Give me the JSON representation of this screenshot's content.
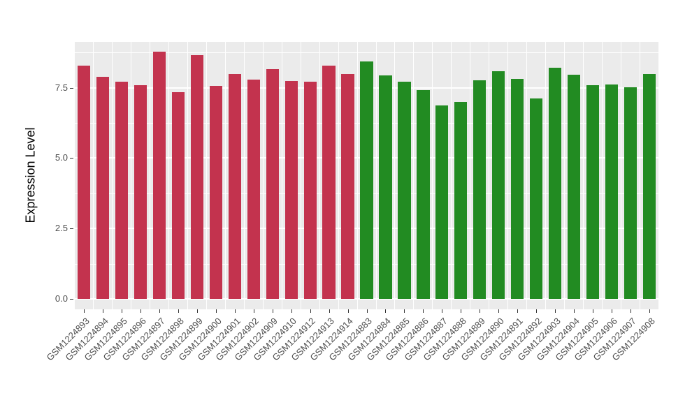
{
  "chart_data": {
    "type": "bar",
    "title": "",
    "xlabel": "",
    "ylabel": "Expression Level",
    "panel_bg": "#EBEBEB",
    "grid_color": "#FFFFFF",
    "axis_text_color": "#4D4D4D",
    "ylim": [
      0,
      9.5
    ],
    "grid": true,
    "legend": "none",
    "y_ticks": [
      {
        "value": 0.0,
        "label": "0.0"
      },
      {
        "value": 2.5,
        "label": "2.5"
      },
      {
        "value": 5.0,
        "label": "5.0"
      },
      {
        "value": 7.5,
        "label": "7.5"
      }
    ],
    "y_minor_ticks": [
      1.25,
      3.75,
      6.25,
      8.75
    ],
    "groups": [
      {
        "name": "group-red",
        "color": "#C3334E"
      },
      {
        "name": "group-green",
        "color": "#228B22"
      }
    ],
    "bars": [
      {
        "sample": "GSM1224893",
        "value": 8.27,
        "group": 0
      },
      {
        "sample": "GSM1224894",
        "value": 7.89,
        "group": 0
      },
      {
        "sample": "GSM1224895",
        "value": 7.71,
        "group": 0
      },
      {
        "sample": "GSM1224896",
        "value": 7.6,
        "group": 0
      },
      {
        "sample": "GSM1224897",
        "value": 8.79,
        "group": 0
      },
      {
        "sample": "GSM1224898",
        "value": 7.33,
        "group": 0
      },
      {
        "sample": "GSM1224899",
        "value": 8.65,
        "group": 0
      },
      {
        "sample": "GSM1224900",
        "value": 7.57,
        "group": 0
      },
      {
        "sample": "GSM1224901",
        "value": 7.98,
        "group": 0
      },
      {
        "sample": "GSM1224902",
        "value": 7.78,
        "group": 0
      },
      {
        "sample": "GSM1224909",
        "value": 8.16,
        "group": 0
      },
      {
        "sample": "GSM1224910",
        "value": 7.74,
        "group": 0
      },
      {
        "sample": "GSM1224912",
        "value": 7.72,
        "group": 0
      },
      {
        "sample": "GSM1224913",
        "value": 8.27,
        "group": 0
      },
      {
        "sample": "GSM1224914",
        "value": 7.98,
        "group": 0
      },
      {
        "sample": "GSM1224883",
        "value": 8.42,
        "group": 1
      },
      {
        "sample": "GSM1224884",
        "value": 7.94,
        "group": 1
      },
      {
        "sample": "GSM1224885",
        "value": 7.71,
        "group": 1
      },
      {
        "sample": "GSM1224886",
        "value": 7.42,
        "group": 1
      },
      {
        "sample": "GSM1224887",
        "value": 6.88,
        "group": 1
      },
      {
        "sample": "GSM1224888",
        "value": 7.0,
        "group": 1
      },
      {
        "sample": "GSM1224889",
        "value": 7.76,
        "group": 1
      },
      {
        "sample": "GSM1224890",
        "value": 8.08,
        "group": 1
      },
      {
        "sample": "GSM1224891",
        "value": 7.8,
        "group": 1
      },
      {
        "sample": "GSM1224892",
        "value": 7.11,
        "group": 1
      },
      {
        "sample": "GSM1224903",
        "value": 8.2,
        "group": 1
      },
      {
        "sample": "GSM1224904",
        "value": 7.96,
        "group": 1
      },
      {
        "sample": "GSM1224905",
        "value": 7.58,
        "group": 1
      },
      {
        "sample": "GSM1224906",
        "value": 7.61,
        "group": 1
      },
      {
        "sample": "GSM1224907",
        "value": 7.51,
        "group": 1
      },
      {
        "sample": "GSM1224908",
        "value": 7.98,
        "group": 1
      }
    ]
  }
}
